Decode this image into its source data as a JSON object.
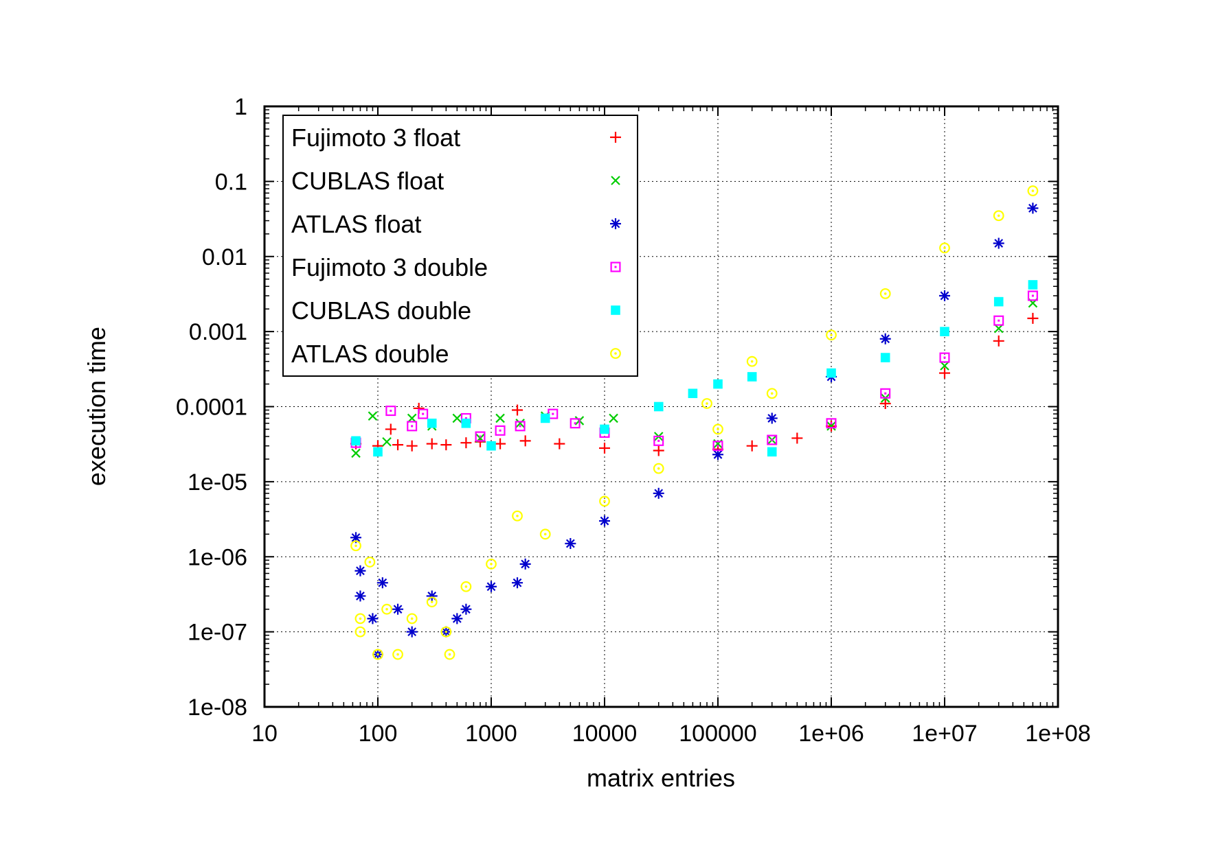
{
  "chart_data": {
    "type": "scatter",
    "title": "",
    "xlabel": "matrix entries",
    "ylabel": "execution time",
    "xscale": "log",
    "yscale": "log",
    "xlim": [
      10,
      100000000
    ],
    "ylim": [
      1e-08,
      1
    ],
    "grid": true,
    "legend_position": "top-left",
    "x_ticks": [
      "10",
      "100",
      "1000",
      "10000",
      "100000",
      "1e+06",
      "1e+07",
      "1e+08"
    ],
    "y_ticks": [
      "1e-08",
      "1e-07",
      "1e-06",
      "1e-05",
      "0.0001",
      "0.001",
      "0.01",
      "0.1",
      "1"
    ],
    "series": [
      {
        "name": "Fujimoto 3 float",
        "color": "#ff0000",
        "marker": "plus",
        "points": [
          [
            64,
            3.2e-05
          ],
          [
            100,
            3e-05
          ],
          [
            130,
            5e-05
          ],
          [
            150,
            3.1e-05
          ],
          [
            200,
            3e-05
          ],
          [
            230,
            9.5e-05
          ],
          [
            300,
            3.2e-05
          ],
          [
            400,
            3.1e-05
          ],
          [
            600,
            3.3e-05
          ],
          [
            800,
            3.4e-05
          ],
          [
            1200,
            3.2e-05
          ],
          [
            1700,
            9e-05
          ],
          [
            2000,
            3.5e-05
          ],
          [
            4000,
            3.2e-05
          ],
          [
            10000,
            2.8e-05
          ],
          [
            30000,
            2.6e-05
          ],
          [
            100000,
            2.7e-05
          ],
          [
            200000,
            3e-05
          ],
          [
            500000,
            3.8e-05
          ],
          [
            1000000,
            5.5e-05
          ],
          [
            3000000,
            0.00011
          ],
          [
            10000000,
            0.00028
          ],
          [
            30000000,
            0.00075
          ],
          [
            60000000,
            0.0015
          ]
        ]
      },
      {
        "name": "CUBLAS float",
        "color": "#00cc00",
        "marker": "cross",
        "points": [
          [
            64,
            2.4e-05
          ],
          [
            90,
            7.5e-05
          ],
          [
            120,
            3.4e-05
          ],
          [
            200,
            7e-05
          ],
          [
            300,
            5.5e-05
          ],
          [
            500,
            7e-05
          ],
          [
            800,
            3.8e-05
          ],
          [
            1200,
            7e-05
          ],
          [
            1800,
            6e-05
          ],
          [
            3000,
            7.5e-05
          ],
          [
            6000,
            6.5e-05
          ],
          [
            12000,
            7e-05
          ],
          [
            30000,
            4e-05
          ],
          [
            100000,
            3.2e-05
          ],
          [
            300000,
            3.6e-05
          ],
          [
            1000000,
            5.5e-05
          ],
          [
            3000000,
            0.00013
          ],
          [
            10000000,
            0.00035
          ],
          [
            30000000,
            0.0011
          ],
          [
            60000000,
            0.0024
          ]
        ]
      },
      {
        "name": "ATLAS float",
        "color": "#0000cc",
        "marker": "star",
        "points": [
          [
            64,
            1.8e-06
          ],
          [
            70,
            6.5e-07
          ],
          [
            70,
            3e-07
          ],
          [
            90,
            1.5e-07
          ],
          [
            100,
            5e-08
          ],
          [
            110,
            4.5e-07
          ],
          [
            150,
            2e-07
          ],
          [
            200,
            1e-07
          ],
          [
            300,
            3e-07
          ],
          [
            400,
            1e-07
          ],
          [
            500,
            1.5e-07
          ],
          [
            600,
            2e-07
          ],
          [
            1000,
            4e-07
          ],
          [
            1700,
            4.5e-07
          ],
          [
            2000,
            8e-07
          ],
          [
            5000,
            1.5e-06
          ],
          [
            10000,
            3e-06
          ],
          [
            30000,
            7e-06
          ],
          [
            100000,
            2.3e-05
          ],
          [
            300000,
            7e-05
          ],
          [
            1000000,
            0.00025
          ],
          [
            3000000,
            0.0008
          ],
          [
            10000000,
            0.003
          ],
          [
            30000000,
            0.015
          ],
          [
            60000000,
            0.044
          ]
        ]
      },
      {
        "name": "Fujimoto 3 double",
        "color": "#ff00ff",
        "marker": "square-dot",
        "points": [
          [
            64,
            3.3e-05
          ],
          [
            130,
            8.8e-05
          ],
          [
            200,
            5.5e-05
          ],
          [
            250,
            8e-05
          ],
          [
            600,
            7e-05
          ],
          [
            800,
            4e-05
          ],
          [
            1200,
            4.8e-05
          ],
          [
            1800,
            5.5e-05
          ],
          [
            3500,
            8e-05
          ],
          [
            5500,
            6e-05
          ],
          [
            10000,
            4.5e-05
          ],
          [
            30000,
            3.5e-05
          ],
          [
            100000,
            3e-05
          ],
          [
            300000,
            3.6e-05
          ],
          [
            1000000,
            6e-05
          ],
          [
            3000000,
            0.00015
          ],
          [
            10000000,
            0.00045
          ],
          [
            30000000,
            0.0014
          ],
          [
            60000000,
            0.003
          ]
        ]
      },
      {
        "name": "CUBLAS double",
        "color": "#00ffff",
        "marker": "filled-square",
        "points": [
          [
            64,
            3.5e-05
          ],
          [
            100,
            2.5e-05
          ],
          [
            300,
            6e-05
          ],
          [
            600,
            6e-05
          ],
          [
            1000,
            3e-05
          ],
          [
            3000,
            7e-05
          ],
          [
            10000,
            5e-05
          ],
          [
            30000,
            0.0001
          ],
          [
            60000,
            0.00015
          ],
          [
            100000,
            0.0002
          ],
          [
            200000,
            0.00025
          ],
          [
            300000,
            2.5e-05
          ],
          [
            1000000,
            0.00028
          ],
          [
            3000000,
            0.00045
          ],
          [
            10000000,
            0.001
          ],
          [
            30000000,
            0.0025
          ],
          [
            60000000,
            0.0042
          ]
        ]
      },
      {
        "name": "ATLAS double",
        "color": "#ffff00",
        "marker": "circle-dot",
        "points": [
          [
            64,
            1.4e-06
          ],
          [
            70,
            1.5e-07
          ],
          [
            70,
            1e-07
          ],
          [
            85,
            8.5e-07
          ],
          [
            100,
            5e-08
          ],
          [
            120,
            2e-07
          ],
          [
            150,
            5e-08
          ],
          [
            200,
            1.5e-07
          ],
          [
            300,
            2.5e-07
          ],
          [
            400,
            1e-07
          ],
          [
            430,
            5e-08
          ],
          [
            600,
            4e-07
          ],
          [
            1000,
            8e-07
          ],
          [
            1700,
            3.5e-06
          ],
          [
            3000,
            2e-06
          ],
          [
            10000,
            5.5e-06
          ],
          [
            30000,
            1.5e-05
          ],
          [
            80000,
            0.00011
          ],
          [
            100000,
            5e-05
          ],
          [
            200000,
            0.0004
          ],
          [
            300000,
            0.00015
          ],
          [
            1000000,
            0.0009
          ],
          [
            3000000,
            0.0032
          ],
          [
            10000000,
            0.013
          ],
          [
            30000000,
            0.035
          ],
          [
            60000000,
            0.075
          ]
        ]
      }
    ]
  }
}
